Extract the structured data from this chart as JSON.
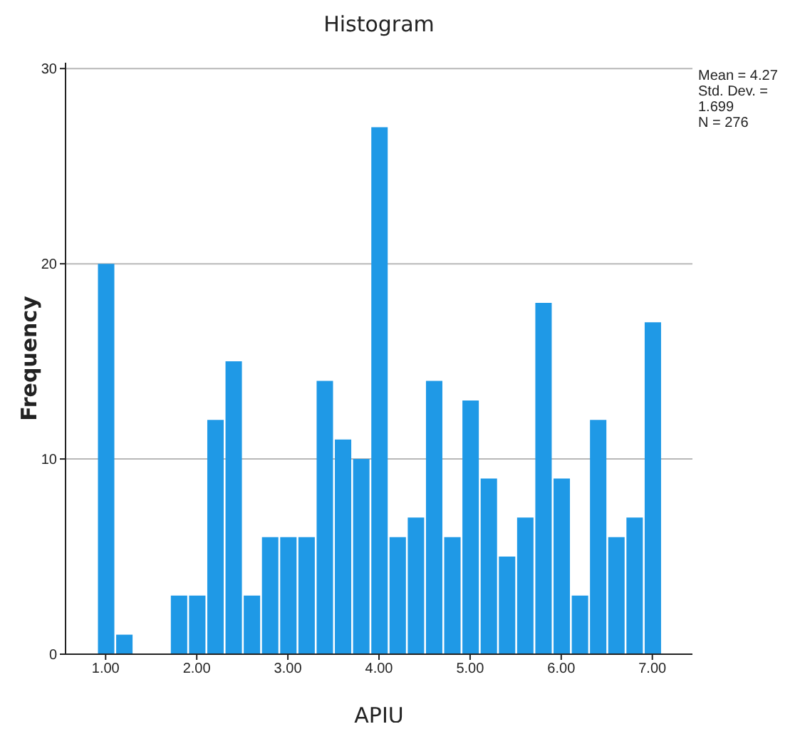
{
  "chart_data": {
    "type": "histogram",
    "title": "Histogram",
    "xlabel": "APIU",
    "ylabel": "Frequency",
    "bins": [
      0.9,
      1.1,
      1.3,
      1.5,
      1.7,
      1.9,
      2.1,
      2.3,
      2.5,
      2.7,
      2.9,
      3.1,
      3.3,
      3.5,
      3.7,
      3.9,
      4.1,
      4.3,
      4.5,
      4.7,
      4.9,
      5.1,
      5.3,
      5.5,
      5.7,
      5.9,
      6.1,
      6.3,
      6.5,
      6.7,
      6.9,
      7.1
    ],
    "values": [
      20,
      1,
      0,
      0,
      3,
      3,
      12,
      15,
      3,
      6,
      6,
      6,
      14,
      11,
      10,
      27,
      6,
      7,
      14,
      6,
      13,
      9,
      5,
      7,
      18,
      9,
      3,
      12,
      6,
      7,
      17
    ],
    "color": "#1f99e6",
    "xlim": [
      0.56,
      7.44
    ],
    "xticks": [
      {
        "value": 1,
        "label": "1.00"
      },
      {
        "value": 2,
        "label": "2.00"
      },
      {
        "value": 3,
        "label": "3.00"
      },
      {
        "value": 4,
        "label": "4.00"
      },
      {
        "value": 5,
        "label": "5.00"
      },
      {
        "value": 6,
        "label": "6.00"
      },
      {
        "value": 7,
        "label": "7.00"
      }
    ],
    "ylim": [
      0,
      30.3
    ],
    "yticks": [
      0,
      10,
      20,
      30
    ],
    "grid": "y",
    "annotations": [
      "Mean = 4.27",
      "Std. Dev. = 1.699",
      "N = 276"
    ]
  }
}
